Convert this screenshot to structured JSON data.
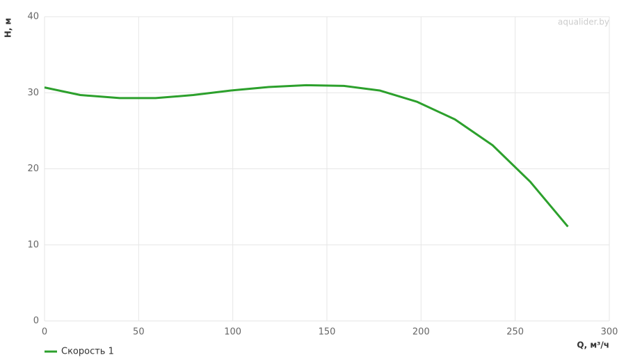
{
  "chart_data": {
    "type": "line",
    "watermark": "aqualider.by",
    "x_label": "Q, м³/ч",
    "y_label": "H, м",
    "x": [
      0,
      19,
      40,
      59,
      79,
      99,
      119,
      139,
      159,
      178,
      198,
      218,
      238,
      258,
      278
    ],
    "series": [
      {
        "name": "Скорость 1",
        "color": "#2ca02c",
        "values": [
          30.7,
          29.7,
          29.3,
          29.3,
          29.7,
          30.3,
          30.75,
          31.0,
          30.9,
          30.3,
          28.8,
          26.5,
          23.1,
          18.3,
          12.4
        ]
      }
    ],
    "xlim": [
      0,
      300
    ],
    "xticks": [
      0,
      50,
      100,
      150,
      200,
      250,
      300
    ],
    "ylim": [
      0,
      40
    ],
    "yticks": [
      0,
      10,
      20,
      30,
      40
    ],
    "grid": true,
    "legend": "bottom-left"
  }
}
